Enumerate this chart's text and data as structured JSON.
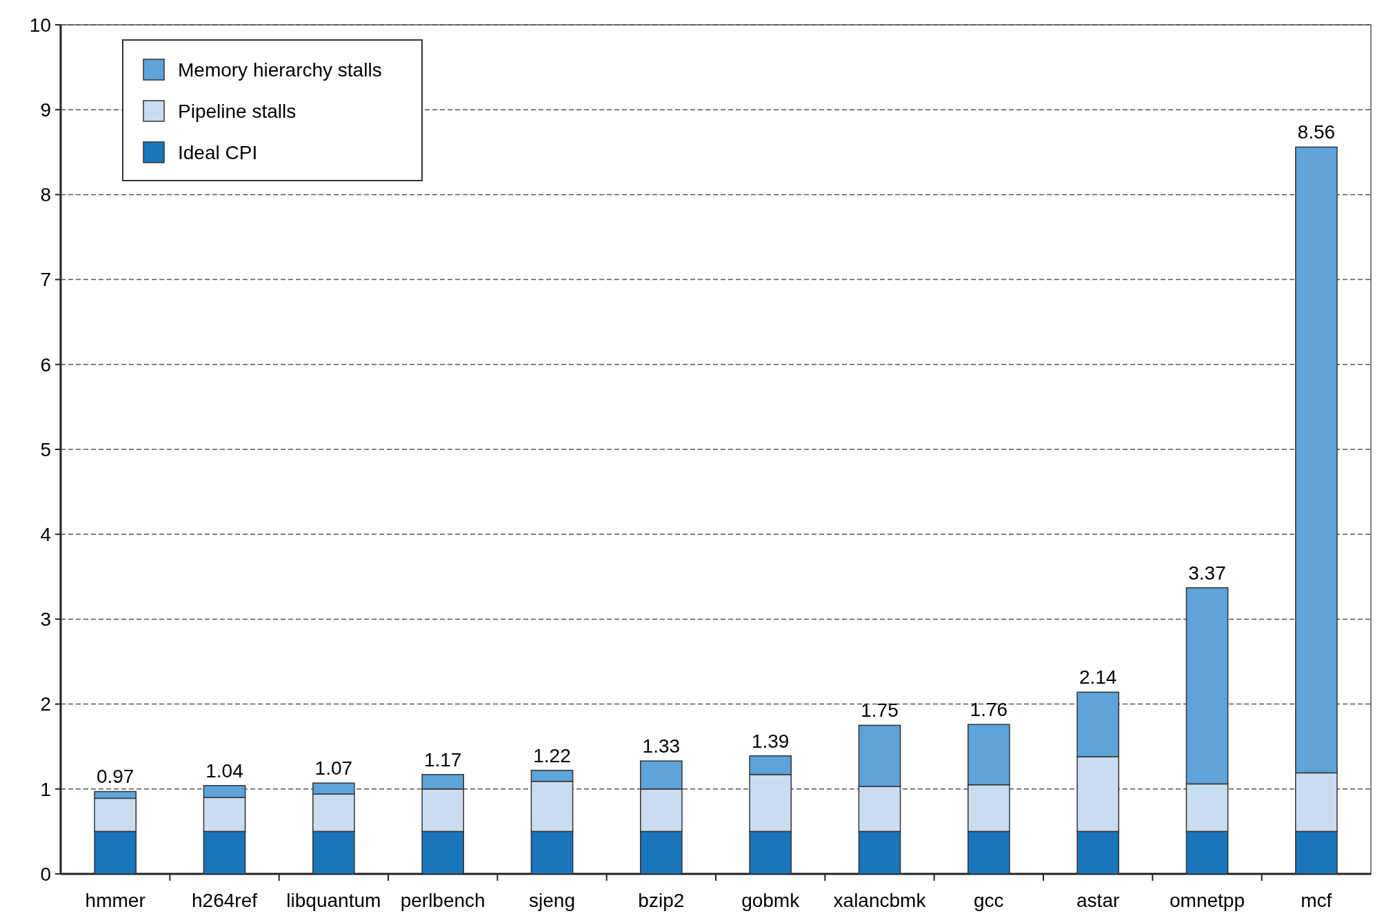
{
  "chart_data": {
    "type": "bar",
    "stacked": true,
    "categories": [
      "hmmer",
      "h264ref",
      "libquantum",
      "perlbench",
      "sjeng",
      "bzip2",
      "gobmk",
      "xalancbmk",
      "gcc",
      "astar",
      "omnetpp",
      "mcf"
    ],
    "series": [
      {
        "name": "Ideal CPI",
        "color": "#1a75bb",
        "values": [
          0.5,
          0.5,
          0.5,
          0.5,
          0.5,
          0.5,
          0.5,
          0.5,
          0.5,
          0.5,
          0.5,
          0.5
        ]
      },
      {
        "name": "Pipeline stalls",
        "color": "#c9dcf0",
        "values": [
          0.39,
          0.4,
          0.44,
          0.5,
          0.59,
          0.5,
          0.67,
          0.53,
          0.55,
          0.88,
          0.56,
          0.69
        ]
      },
      {
        "name": "Memory hierarchy stalls",
        "color": "#5ea3d9",
        "values": [
          0.08,
          0.14,
          0.13,
          0.17,
          0.13,
          0.33,
          0.22,
          0.72,
          0.71,
          0.76,
          2.31,
          7.37
        ]
      }
    ],
    "totals": [
      "0.97",
      "1.04",
      "1.07",
      "1.17",
      "1.22",
      "1.33",
      "1.39",
      "1.75",
      "1.76",
      "2.14",
      "3.37",
      "8.56"
    ],
    "ylim": [
      0,
      10
    ],
    "yticks": [
      0,
      1,
      2,
      3,
      4,
      5,
      6,
      7,
      8,
      9,
      10
    ],
    "grid": "y",
    "legend": "top left"
  }
}
